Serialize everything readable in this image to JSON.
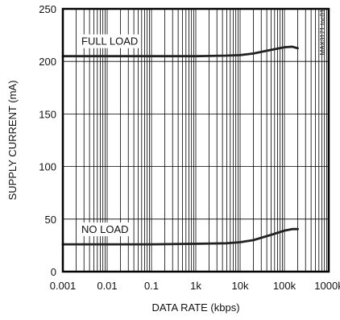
{
  "chart_data": {
    "type": "line",
    "xlabel": "DATA RATE (kbps)",
    "ylabel": "SUPPLY CURRENT (mA)",
    "x_scale": "log",
    "xlim": [
      0.001,
      1000
    ],
    "ylim": [
      0,
      250
    ],
    "grid": true,
    "x_ticks": [
      {
        "value": 0.001,
        "label": "0.001"
      },
      {
        "value": 0.01,
        "label": "0.01"
      },
      {
        "value": 0.1,
        "label": "0.1"
      },
      {
        "value": 1,
        "label": "1k"
      },
      {
        "value": 10,
        "label": "10k"
      },
      {
        "value": 100,
        "label": "100k"
      },
      {
        "value": 1000,
        "label": "1000k"
      }
    ],
    "y_ticks": [
      {
        "value": 0,
        "label": "0"
      },
      {
        "value": 50,
        "label": "50"
      },
      {
        "value": 100,
        "label": "100"
      },
      {
        "value": 150,
        "label": "150"
      },
      {
        "value": 200,
        "label": "200"
      },
      {
        "value": 250,
        "label": "250"
      }
    ],
    "series": [
      {
        "name": "FULL LOAD",
        "x": [
          0.001,
          0.01,
          0.1,
          1,
          5,
          10,
          20,
          50,
          100,
          150,
          200
        ],
        "y": [
          205,
          205,
          205,
          205,
          205.5,
          206,
          207.5,
          211,
          213.5,
          214,
          212.5
        ]
      },
      {
        "name": "NO LOAD",
        "x": [
          0.001,
          0.01,
          0.1,
          1,
          5,
          10,
          20,
          50,
          100,
          150,
          200
        ],
        "y": [
          26,
          26,
          26,
          26.5,
          27,
          28,
          30,
          35,
          39,
          40.5,
          40.5
        ]
      }
    ],
    "annotations": [
      "MAX3171 toc01"
    ]
  }
}
